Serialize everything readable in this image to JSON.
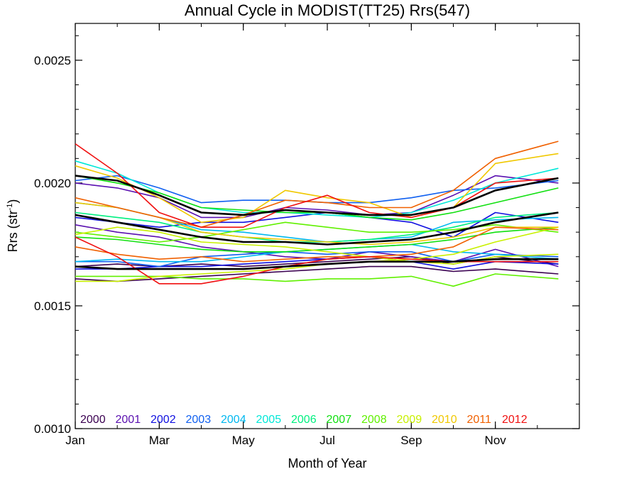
{
  "chart_data": {
    "type": "line",
    "title": "Annual Cycle in MODIST(TT25) Rrs(547)",
    "xlabel": "Month of Year",
    "ylabel": "Rrs (str",
    "ylabel_sup": "-1",
    "ylabel_end": ")",
    "xlim": [
      1,
      13
    ],
    "ylim": [
      0.001,
      0.00265
    ],
    "x_ticks": [
      {
        "value": 1,
        "label": "Jan"
      },
      {
        "value": 3,
        "label": "Mar"
      },
      {
        "value": 5,
        "label": "May"
      },
      {
        "value": 7,
        "label": "Jul"
      },
      {
        "value": 9,
        "label": "Sep"
      },
      {
        "value": 11,
        "label": "Nov"
      }
    ],
    "y_ticks": [
      {
        "value": 0.001,
        "label": "0.0010"
      },
      {
        "value": 0.0015,
        "label": "0.0015"
      },
      {
        "value": 0.002,
        "label": "0.0020"
      },
      {
        "value": 0.0025,
        "label": "0.0025"
      }
    ],
    "x": [
      1,
      2,
      3,
      4,
      5,
      6,
      7,
      8,
      9,
      10,
      11,
      12.5
    ],
    "legend_placement": "bottom-left",
    "legend": [
      {
        "label": "2000",
        "color": "#3a0050"
      },
      {
        "label": "2001",
        "color": "#5a10b0"
      },
      {
        "label": "2002",
        "color": "#1010e0"
      },
      {
        "label": "2003",
        "color": "#1060f0"
      },
      {
        "label": "2004",
        "color": "#00b8f0"
      },
      {
        "label": "2005",
        "color": "#00e8d8"
      },
      {
        "label": "2006",
        "color": "#00f080"
      },
      {
        "label": "2007",
        "color": "#10e010"
      },
      {
        "label": "2008",
        "color": "#60f000"
      },
      {
        "label": "2009",
        "color": "#c8f000"
      },
      {
        "label": "2010",
        "color": "#f0c800"
      },
      {
        "label": "2011",
        "color": "#f06000"
      },
      {
        "label": "2012",
        "color": "#f01010"
      }
    ],
    "series": [
      {
        "color": "#3a0050",
        "values": [
          0.00161,
          0.0016,
          0.00161,
          0.00162,
          0.00163,
          0.00164,
          0.00165,
          0.00166,
          0.00166,
          0.00164,
          0.00165,
          0.00163
        ]
      },
      {
        "color": "#3a0050",
        "values": [
          0.00166,
          0.00167,
          0.00166,
          0.00167,
          0.00166,
          0.00167,
          0.00168,
          0.00169,
          0.0017,
          0.00167,
          0.0017,
          0.00167
        ]
      },
      {
        "color": "#5a10b0",
        "values": [
          0.00183,
          0.0018,
          0.00178,
          0.00174,
          0.00172,
          0.0017,
          0.00169,
          0.00172,
          0.0017,
          0.00168,
          0.00173,
          0.00166
        ]
      },
      {
        "color": "#5a10b0",
        "values": [
          0.002,
          0.00198,
          0.00194,
          0.00186,
          0.00186,
          0.0019,
          0.00189,
          0.00187,
          0.00188,
          0.00195,
          0.00203,
          0.002
        ]
      },
      {
        "color": "#1010e0",
        "values": [
          0.00165,
          0.00165,
          0.00166,
          0.00166,
          0.00167,
          0.00168,
          0.00169,
          0.0017,
          0.00168,
          0.00165,
          0.00168,
          0.00167
        ]
      },
      {
        "color": "#1010e0",
        "values": [
          0.00186,
          0.00184,
          0.00182,
          0.00184,
          0.00184,
          0.00186,
          0.00188,
          0.00186,
          0.00184,
          0.00178,
          0.00188,
          0.00184
        ]
      },
      {
        "color": "#1060f0",
        "values": [
          0.00168,
          0.00168,
          0.00166,
          0.0017,
          0.00171,
          0.00172,
          0.00171,
          0.00172,
          0.00172,
          0.00168,
          0.00171,
          0.0017
        ]
      },
      {
        "color": "#1060f0",
        "values": [
          0.00201,
          0.00203,
          0.00198,
          0.00192,
          0.00193,
          0.00193,
          0.00192,
          0.00192,
          0.00194,
          0.00197,
          0.00198,
          0.00201
        ]
      },
      {
        "color": "#00b8f0",
        "values": [
          0.00192,
          0.0019,
          0.00186,
          0.00181,
          0.0018,
          0.00178,
          0.00176,
          0.00177,
          0.00178,
          0.00184,
          0.00185,
          0.00186
        ]
      },
      {
        "color": "#00b8f0",
        "values": [
          0.00168,
          0.00169,
          0.00168,
          0.00168,
          0.0017,
          0.00172,
          0.00173,
          0.00174,
          0.00175,
          0.00172,
          0.00171,
          0.00169
        ]
      },
      {
        "color": "#00e8d8",
        "values": [
          0.00209,
          0.00204,
          0.00196,
          0.0019,
          0.00188,
          0.00188,
          0.00187,
          0.00186,
          0.00188,
          0.00193,
          0.002,
          0.00206
        ]
      },
      {
        "color": "#00f080",
        "values": [
          0.00188,
          0.00186,
          0.00184,
          0.0018,
          0.00178,
          0.00176,
          0.00176,
          0.00177,
          0.00179,
          0.00182,
          0.00186,
          0.00188
        ]
      },
      {
        "color": "#10e010",
        "values": [
          0.00203,
          0.002,
          0.00196,
          0.0019,
          0.00189,
          0.00188,
          0.00188,
          0.00186,
          0.00185,
          0.00188,
          0.00192,
          0.00198
        ]
      },
      {
        "color": "#10e010",
        "values": [
          0.00178,
          0.00177,
          0.00175,
          0.00173,
          0.00172,
          0.00172,
          0.00173,
          0.00174,
          0.00175,
          0.00177,
          0.0018,
          0.00182
        ]
      },
      {
        "color": "#60f000",
        "values": [
          0.0018,
          0.00178,
          0.00176,
          0.00178,
          0.00181,
          0.00184,
          0.00182,
          0.0018,
          0.0018,
          0.00181,
          0.00183,
          0.0018
        ]
      },
      {
        "color": "#60f000",
        "values": [
          0.00162,
          0.00162,
          0.00162,
          0.00161,
          0.00161,
          0.0016,
          0.00161,
          0.00161,
          0.00162,
          0.00158,
          0.00163,
          0.00161
        ]
      },
      {
        "color": "#c8f000",
        "values": [
          0.00179,
          0.00182,
          0.0018,
          0.00176,
          0.00175,
          0.00174,
          0.00172,
          0.0017,
          0.00168,
          0.00167,
          0.0017,
          0.00171
        ]
      },
      {
        "color": "#c8f000",
        "values": [
          0.0016,
          0.0016,
          0.00162,
          0.00163,
          0.00164,
          0.00165,
          0.00167,
          0.00168,
          0.00169,
          0.00171,
          0.00176,
          0.00182
        ]
      },
      {
        "color": "#f0c800",
        "values": [
          0.00207,
          0.00202,
          0.00194,
          0.00184,
          0.00186,
          0.00197,
          0.00194,
          0.00192,
          0.00186,
          0.0019,
          0.00208,
          0.00212
        ]
      },
      {
        "color": "#f0c800",
        "values": [
          0.00192,
          0.0019,
          0.00186,
          0.0018,
          0.00178,
          0.00177,
          0.00176,
          0.00175,
          0.00176,
          0.00178,
          0.00182,
          0.00182
        ]
      },
      {
        "color": "#f06000",
        "values": [
          0.00174,
          0.00171,
          0.00169,
          0.0017,
          0.00168,
          0.00169,
          0.0017,
          0.0017,
          0.00171,
          0.00174,
          0.00182,
          0.00181
        ]
      },
      {
        "color": "#f06000",
        "values": [
          0.00194,
          0.0019,
          0.00186,
          0.00182,
          0.00187,
          0.00193,
          0.00192,
          0.0019,
          0.0019,
          0.00197,
          0.0021,
          0.00217
        ]
      },
      {
        "color": "#f01010",
        "values": [
          0.00216,
          0.00204,
          0.00188,
          0.00182,
          0.00182,
          0.0019,
          0.00195,
          0.00188,
          0.00186,
          0.0019,
          0.002,
          0.00202
        ]
      },
      {
        "color": "#f01010",
        "values": [
          0.00178,
          0.0017,
          0.00159,
          0.00159,
          0.00162,
          0.00166,
          0.00169,
          0.0017,
          0.00169,
          0.00168,
          0.00168,
          0.00168
        ]
      },
      {
        "color": "#000000",
        "width": 2.6,
        "values": [
          0.00203,
          0.00201,
          0.00195,
          0.00188,
          0.00187,
          0.00189,
          0.00188,
          0.00187,
          0.00187,
          0.0019,
          0.00197,
          0.00202
        ]
      },
      {
        "color": "#000000",
        "width": 2.6,
        "values": [
          0.00187,
          0.00184,
          0.00181,
          0.00178,
          0.00176,
          0.00176,
          0.00175,
          0.00176,
          0.00177,
          0.0018,
          0.00184,
          0.00188
        ]
      },
      {
        "color": "#000000",
        "width": 2.6,
        "values": [
          0.00166,
          0.00165,
          0.00165,
          0.00165,
          0.00165,
          0.00166,
          0.00167,
          0.00168,
          0.00168,
          0.00168,
          0.00169,
          0.00169
        ]
      }
    ]
  }
}
